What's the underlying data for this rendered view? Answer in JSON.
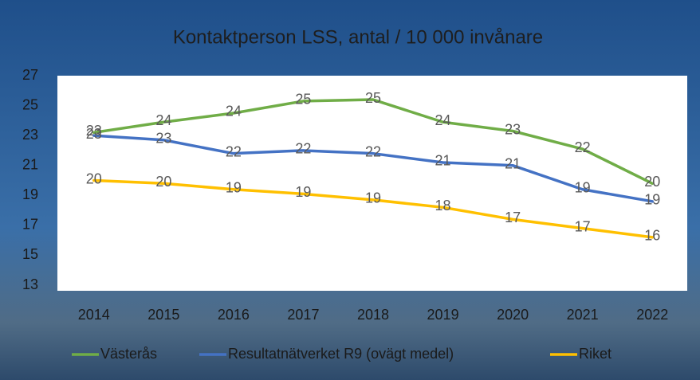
{
  "chart_data": {
    "type": "line",
    "title": "Kontaktperson LSS, antal / 10 000 invånare",
    "categories": [
      "2014",
      "2015",
      "2016",
      "2017",
      "2018",
      "2019",
      "2020",
      "2021",
      "2022"
    ],
    "series": [
      {
        "name": "Västerås",
        "color": "#70ad47",
        "values": [
          23.2,
          23.9,
          24.5,
          25.3,
          25.4,
          23.9,
          23.3,
          22.1,
          19.8
        ],
        "value_labels": [
          "23",
          "24",
          "24",
          "25",
          "25",
          "24",
          "23",
          "22",
          "20"
        ]
      },
      {
        "name": "Resultatnätverket R9 (ovägt medel)",
        "color": "#4472c4",
        "values": [
          23.0,
          22.7,
          21.8,
          22.0,
          21.8,
          21.2,
          21.0,
          19.4,
          18.6
        ],
        "value_labels": [
          "23",
          "23",
          "22",
          "22",
          "22",
          "21",
          "21",
          "19",
          "19"
        ]
      },
      {
        "name": "Riket",
        "color": "#ffc000",
        "values": [
          20.0,
          19.8,
          19.4,
          19.1,
          18.7,
          18.2,
          17.4,
          16.8,
          16.2
        ],
        "value_labels": [
          "20",
          "20",
          "19",
          "19",
          "19",
          "18",
          "17",
          "17",
          "16"
        ]
      }
    ],
    "ylim": [
      13,
      27
    ],
    "yticks": [
      13,
      15,
      17,
      19,
      21,
      23,
      25,
      27
    ],
    "grid": false,
    "legend": "bottom"
  }
}
